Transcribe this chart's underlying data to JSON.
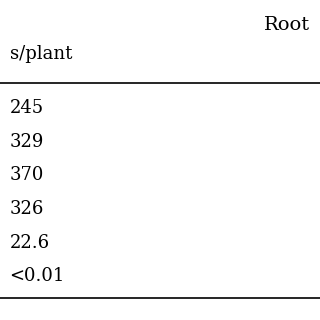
{
  "header_right": "Root",
  "subheader_left": "s/plant",
  "rows": [
    "245",
    "329",
    "370",
    "326",
    "22.6",
    "<0.01"
  ],
  "background_color": "#ffffff",
  "text_color": "#000000",
  "font_size": 13,
  "header_font_size": 14
}
